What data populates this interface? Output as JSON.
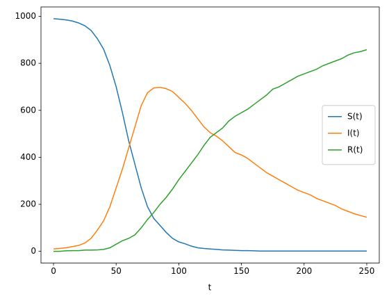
{
  "chart_data": {
    "type": "line",
    "xlabel": "t",
    "x": [
      0,
      5,
      10,
      15,
      20,
      25,
      30,
      35,
      40,
      45,
      50,
      55,
      60,
      65,
      70,
      75,
      80,
      85,
      90,
      95,
      100,
      105,
      110,
      115,
      120,
      125,
      130,
      135,
      140,
      145,
      150,
      155,
      160,
      165,
      170,
      175,
      180,
      185,
      190,
      195,
      200,
      205,
      210,
      215,
      220,
      225,
      230,
      235,
      240,
      245,
      250
    ],
    "series": [
      {
        "name": "S(t)",
        "color": "#1f77b4",
        "values": [
          990,
          988,
          985,
          980,
          972,
          960,
          940,
          905,
          860,
          790,
          700,
          590,
          470,
          370,
          270,
          190,
          140,
          110,
          80,
          55,
          40,
          32,
          22,
          15,
          12,
          10,
          8,
          6,
          5,
          4,
          3,
          3,
          2,
          1,
          1,
          1,
          1,
          1,
          1,
          1,
          1,
          1,
          1,
          1,
          1,
          1,
          1,
          1,
          1,
          1,
          1
        ]
      },
      {
        "name": "I(t)",
        "color": "#ff7f0e",
        "values": [
          10,
          12,
          15,
          20,
          25,
          35,
          55,
          90,
          130,
          190,
          270,
          350,
          440,
          530,
          620,
          675,
          695,
          698,
          692,
          680,
          655,
          630,
          600,
          565,
          530,
          505,
          490,
          470,
          445,
          420,
          410,
          395,
          375,
          355,
          335,
          320,
          305,
          290,
          275,
          260,
          250,
          240,
          225,
          215,
          205,
          195,
          180,
          170,
          160,
          152,
          145
        ]
      },
      {
        "name": "R(t)",
        "color": "#2ca02c",
        "values": [
          0,
          0,
          2,
          3,
          3,
          5,
          5,
          6,
          8,
          15,
          30,
          45,
          55,
          70,
          100,
          135,
          165,
          200,
          230,
          265,
          305,
          340,
          375,
          410,
          450,
          485,
          505,
          525,
          555,
          575,
          590,
          605,
          625,
          645,
          665,
          690,
          700,
          715,
          730,
          745,
          755,
          765,
          775,
          790,
          800,
          810,
          820,
          835,
          845,
          850,
          858
        ]
      }
    ],
    "xlim": [
      -10,
      260
    ],
    "xticks": [
      0,
      50,
      100,
      150,
      200,
      250
    ],
    "ylim": [
      -50,
      1040
    ],
    "yticks": [
      0,
      200,
      400,
      600,
      800,
      1000
    ],
    "legend": "center right"
  }
}
